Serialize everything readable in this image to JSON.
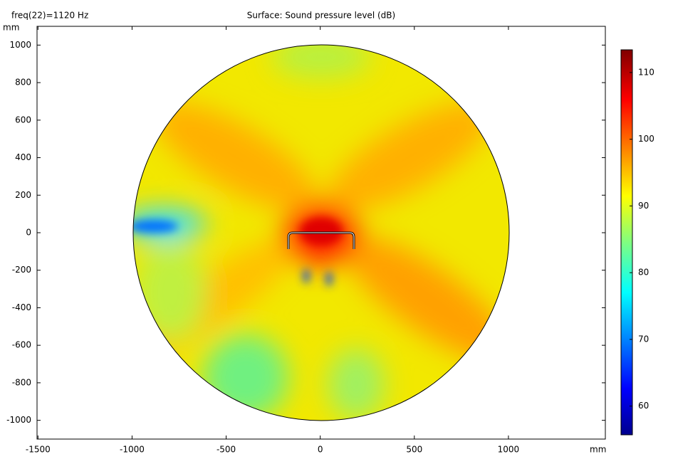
{
  "chart_data": {
    "type": "surface",
    "title": "Surface: Sound pressure level (dB)",
    "subtitle": "freq(22)=1120 Hz",
    "xlabel": "mm",
    "ylabel": "mm",
    "xlim": [
      -1505,
      1515
    ],
    "xticks": [
      -1500,
      -1000,
      -500,
      0,
      500,
      1000
    ],
    "ylim": [
      -1100,
      1100
    ],
    "yticks": [
      -1000,
      -800,
      -600,
      -400,
      -200,
      0,
      200,
      400,
      600,
      800,
      1000
    ],
    "colorbar": {
      "lim": [
        55.7,
        113.4
      ],
      "ticks": [
        60,
        70,
        80,
        90,
        100,
        110
      ]
    }
  }
}
